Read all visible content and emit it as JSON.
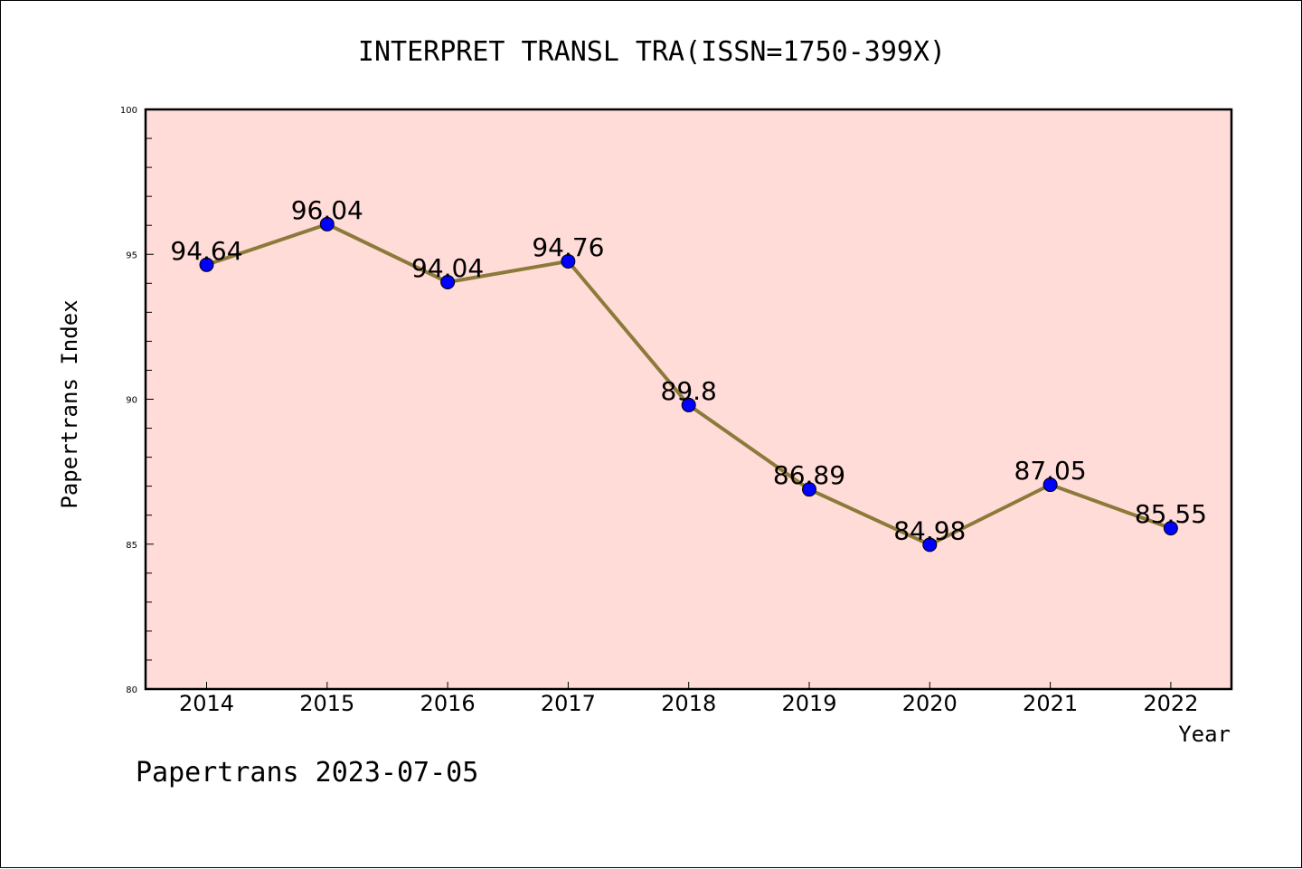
{
  "chart_data": {
    "type": "line",
    "title": "INTERPRET TRANSL TRA(ISSN=1750-399X)",
    "xlabel": "Year",
    "ylabel": "Papertrans Index",
    "categories": [
      "2014",
      "2015",
      "2016",
      "2017",
      "2018",
      "2019",
      "2020",
      "2021",
      "2022"
    ],
    "values": [
      94.64,
      96.04,
      94.04,
      94.76,
      89.8,
      86.89,
      84.98,
      87.05,
      85.55
    ],
    "data_labels": [
      "94.64",
      "96.04",
      "94.04",
      "94.76",
      "89.8",
      "86.89",
      "84.98",
      "87.05",
      "85.55"
    ],
    "ylim": [
      80,
      100
    ],
    "yticks": [
      80,
      85,
      90,
      95,
      100
    ],
    "grid": false,
    "line_color": "#8c7a3a",
    "marker_color": "#0000ff",
    "plot_background": "#ffdcd8"
  },
  "footer": {
    "text": "Papertrans 2023-07-05"
  }
}
